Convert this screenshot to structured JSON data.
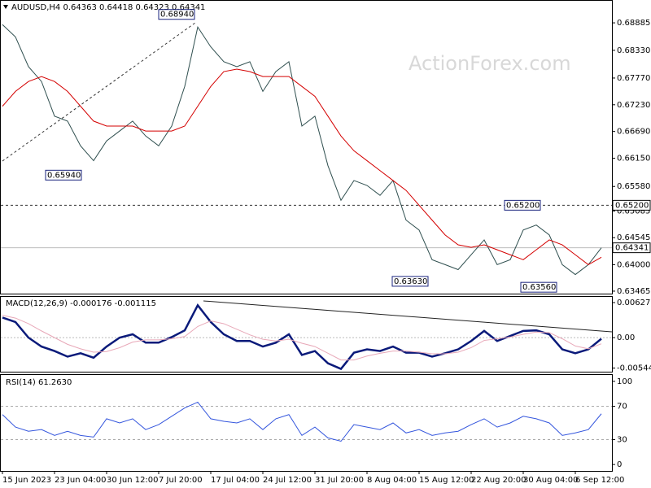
{
  "watermark": "ActionForex.com",
  "chart_data": [
    {
      "type": "line",
      "title": "AUDUSD,H4 0.64363 0.64418 0.64323 0.64341",
      "ylim": [
        0.63415,
        0.6933
      ],
      "yticks": [
        0.68885,
        {
          "value": 0.6833,
          "label": "0.68330"
        },
        {
          "value": 0.6777,
          "label": "0.67770"
        },
        {
          "value": 0.6723,
          "label": "0.67230"
        },
        {
          "value": 0.6669,
          "label": "0.66690"
        },
        {
          "value": 0.6615,
          "label": "0.66150"
        },
        {
          "value": 0.6558,
          "label": "0.65580"
        },
        0.65085,
        0.64545,
        {
          "value": 0.64,
          "label": "0.64000"
        },
        0.63465
      ],
      "series": [
        {
          "name": "AUDUSD",
          "color": "#2f4f4f",
          "values": [
            0.6885,
            0.686,
            0.68,
            0.677,
            0.67,
            0.669,
            0.664,
            0.661,
            0.665,
            0.667,
            0.669,
            0.666,
            0.664,
            0.668,
            0.676,
            0.688,
            0.684,
            0.681,
            0.68,
            0.681,
            0.675,
            0.679,
            0.681,
            0.668,
            0.67,
            0.66,
            0.653,
            0.657,
            0.656,
            0.654,
            0.657,
            0.649,
            0.647,
            0.641,
            0.64,
            0.639,
            0.642,
            0.645,
            0.64,
            0.641,
            0.647,
            0.648,
            0.646,
            0.64,
            0.638,
            0.64,
            0.6434
          ]
        },
        {
          "name": "MA",
          "color": "#d40000",
          "values": [
            0.672,
            0.675,
            0.677,
            0.678,
            0.677,
            0.675,
            0.672,
            0.669,
            0.668,
            0.668,
            0.668,
            0.667,
            0.667,
            0.667,
            0.668,
            0.672,
            0.676,
            0.679,
            0.6795,
            0.679,
            0.678,
            0.678,
            0.678,
            0.676,
            0.674,
            0.67,
            0.666,
            0.663,
            0.661,
            0.659,
            0.657,
            0.655,
            0.652,
            0.649,
            0.646,
            0.644,
            0.6435,
            0.644,
            0.643,
            0.642,
            0.641,
            0.643,
            0.645,
            0.644,
            0.642,
            0.64,
            0.6415
          ]
        }
      ],
      "annotations": [
        {
          "value": 0.6894,
          "label": "0.68940"
        },
        {
          "value": 0.6594,
          "label": "0.65940"
        },
        {
          "value": 0.6363,
          "label": "0.63630"
        },
        {
          "value": 0.6356,
          "label": "0.63560"
        },
        {
          "value": 0.652,
          "label": "0.65200"
        }
      ],
      "current": {
        "value": 0.64341,
        "label": "0.64341"
      }
    },
    {
      "type": "line",
      "title": "MACD(12,26,9) -0.000176 -0.001115",
      "ylim": [
        -0.0061,
        0.0073
      ],
      "yticks": [
        0.006275,
        {
          "value": 0,
          "label": "0.00"
        },
        -0.005446
      ],
      "series": [
        {
          "name": "MACD",
          "color": "#0a1a7a",
          "values": [
            0.0036,
            0.0028,
            0,
            -0.0016,
            -0.0024,
            -0.0034,
            -0.0028,
            -0.0036,
            -0.0016,
            0,
            0.0006,
            -0.0009,
            -0.0009,
            0.0001,
            0.0013,
            0.0058,
            0.0028,
            0.0006,
            -0.0006,
            -0.0006,
            -0.0016,
            -0.0009,
            0.0006,
            -0.0031,
            -0.0024,
            -0.0046,
            -0.0056,
            -0.0027,
            -0.0021,
            -0.0024,
            -0.0016,
            -0.0027,
            -0.0027,
            -0.0034,
            -0.0028,
            -0.0021,
            -0.0006,
            0.0012,
            -0.0006,
            0.0003,
            0.0012,
            0.0013,
            0.0006,
            -0.0021,
            -0.0028,
            -0.0021,
            -0.0002
          ]
        },
        {
          "name": "Signal",
          "color": "#e8a8b8",
          "values": [
            0.004,
            0.0035,
            0.0025,
            0.0012,
            0,
            -0.0012,
            -0.002,
            -0.0026,
            -0.0025,
            -0.0018,
            -0.0008,
            -0.0004,
            -0.0004,
            -0.0002,
            0.0002,
            0.002,
            0.003,
            0.0025,
            0.0015,
            0.0005,
            -0.0003,
            -0.0006,
            -0.0003,
            -0.001,
            -0.0016,
            -0.0028,
            -0.004,
            -0.004,
            -0.0033,
            -0.0028,
            -0.0024,
            -0.0024,
            -0.0026,
            -0.0029,
            -0.0029,
            -0.0026,
            -0.0018,
            -0.0005,
            -0.0002,
            0.0001,
            0.0006,
            0.001,
            0.0009,
            -0.0002,
            -0.0015,
            -0.002,
            -0.0011
          ]
        }
      ]
    },
    {
      "type": "line",
      "title": "RSI(14) 61.2630",
      "ylim": [
        -7.7,
        107.7
      ],
      "yticks": [
        100,
        70,
        30,
        0
      ],
      "levels": [
        70,
        30
      ],
      "series": [
        {
          "name": "RSI",
          "color": "#3355dd",
          "values": [
            60,
            45,
            40,
            42,
            35,
            40,
            35,
            33,
            55,
            50,
            55,
            42,
            48,
            58,
            68,
            75,
            55,
            52,
            50,
            55,
            42,
            55,
            60,
            35,
            45,
            32,
            28,
            48,
            45,
            42,
            50,
            38,
            42,
            35,
            38,
            40,
            48,
            55,
            45,
            50,
            58,
            55,
            50,
            35,
            38,
            42,
            61
          ]
        }
      ],
      "categories": [
        "15 Jun 2023",
        null,
        null,
        null,
        "23 Jun 04:00",
        null,
        null,
        null,
        "30 Jun 12:00",
        null,
        null,
        null,
        "7 Jul 20:00",
        null,
        null,
        null,
        "17 Jul 04:00",
        null,
        null,
        null,
        "24 Jul 12:00",
        null,
        null,
        null,
        "31 Jul 20:00",
        null,
        null,
        null,
        "8 Aug 04:00",
        null,
        null,
        null,
        "15 Aug 12:00",
        null,
        null,
        null,
        "22 Aug 20:00",
        null,
        null,
        null,
        "30 Aug 04:00",
        null,
        null,
        null,
        "6 Sep 12:00",
        null,
        null
      ]
    }
  ]
}
